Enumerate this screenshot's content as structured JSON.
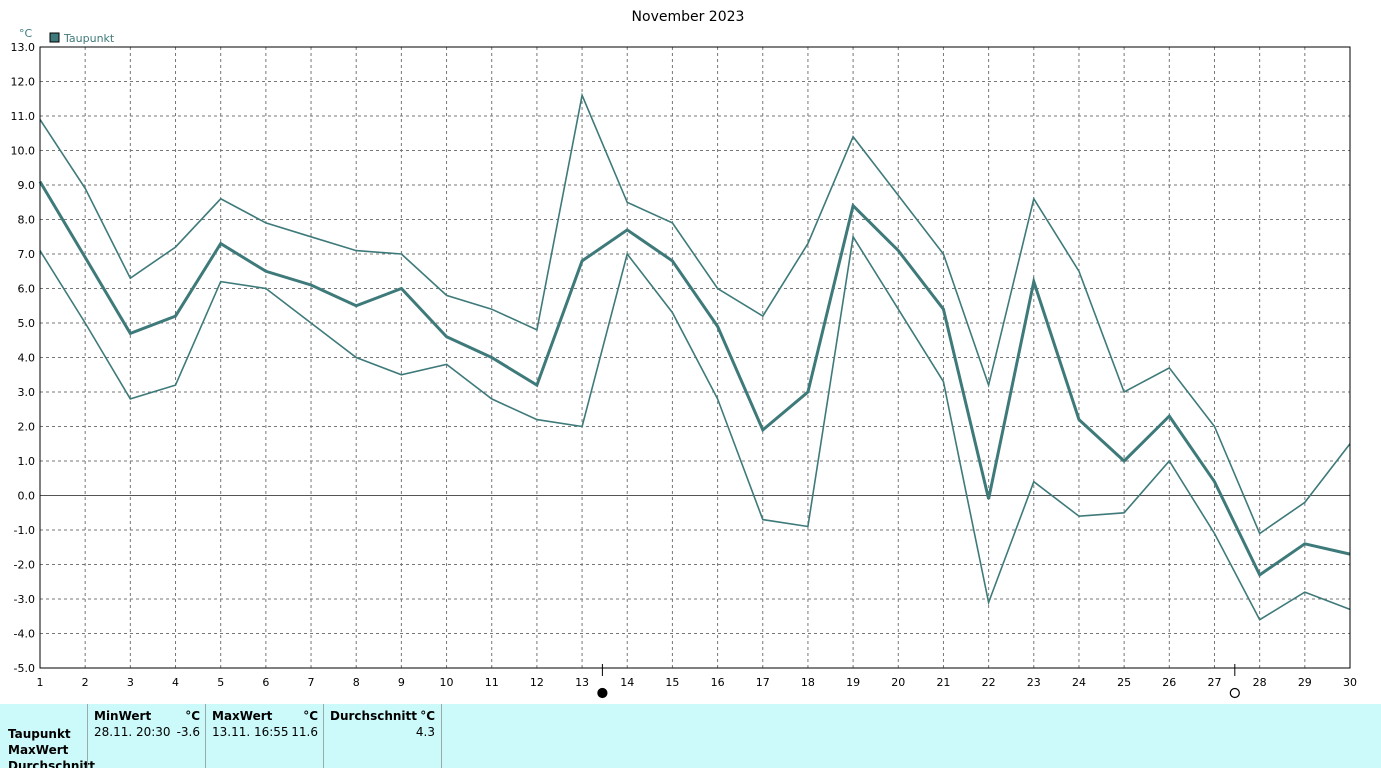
{
  "chart_data": {
    "type": "line",
    "title": "November 2023",
    "ylabel": "°C",
    "xlabel": "",
    "ylim": [
      -5,
      13
    ],
    "yticks": [
      13.0,
      12.0,
      11.0,
      10.0,
      9.0,
      8.0,
      7.0,
      6.0,
      5.0,
      4.0,
      3.0,
      2.0,
      1.0,
      0.0,
      -1.0,
      -2.0,
      -3.0,
      -4.0,
      -5.0
    ],
    "ytick_labels": [
      "13.0",
      "12.0",
      "11.0",
      "10.0",
      "9.0",
      "8.0",
      "7.0",
      "6.0",
      "5.0",
      "4.0",
      "3.0",
      "2.0",
      "1.0",
      "0.0",
      "-1.0",
      "-2.0",
      "-3.0",
      "-4.0",
      "-5.0"
    ],
    "x": [
      1,
      2,
      3,
      4,
      5,
      6,
      7,
      8,
      9,
      10,
      11,
      12,
      13,
      14,
      15,
      16,
      17,
      18,
      19,
      20,
      21,
      22,
      23,
      24,
      25,
      26,
      27,
      28,
      29,
      30
    ],
    "xlim": [
      1,
      30
    ],
    "grid": true,
    "legend": "top-left",
    "legend_label": "Taupunkt",
    "color": "#3f7a7a",
    "series": [
      {
        "role": "max",
        "values": [
          10.9,
          8.9,
          6.3,
          7.2,
          8.6,
          7.9,
          7.5,
          7.1,
          7.0,
          5.8,
          5.4,
          4.8,
          11.6,
          8.5,
          7.9,
          6.0,
          5.2,
          7.3,
          10.4,
          8.7,
          7.0,
          3.2,
          8.6,
          6.5,
          3.0,
          3.7,
          2.0,
          -1.1,
          -0.2,
          1.5
        ]
      },
      {
        "role": "mean",
        "values": [
          9.1,
          6.9,
          4.7,
          5.2,
          7.3,
          6.5,
          6.1,
          5.5,
          6.0,
          4.6,
          4.0,
          3.2,
          6.8,
          7.7,
          6.8,
          4.9,
          1.9,
          3.0,
          8.4,
          7.1,
          5.4,
          -0.1,
          6.2,
          2.2,
          1.0,
          2.3,
          0.4,
          -2.3,
          -1.4,
          -1.7
        ]
      },
      {
        "role": "min",
        "values": [
          7.1,
          5.0,
          2.8,
          3.2,
          6.2,
          6.0,
          5.0,
          4.0,
          3.5,
          3.8,
          2.8,
          2.2,
          2.0,
          7.0,
          5.3,
          2.8,
          -0.7,
          -0.9,
          7.5,
          5.4,
          3.3,
          -3.1,
          0.4,
          -0.6,
          -0.5,
          1.0,
          -1.1,
          -3.6,
          -2.8,
          -3.3
        ]
      }
    ],
    "moon_markers": [
      {
        "x": 13.45,
        "phase": "new-moon"
      },
      {
        "x": 27.45,
        "phase": "full-moon"
      }
    ]
  },
  "stats": {
    "row_labels": [
      "Taupunkt",
      "MaxWert",
      "Durchschnitt"
    ],
    "columns": [
      {
        "header": "MinWert",
        "unit": "°C",
        "when": "28.11.  20:30",
        "value": "-3.6"
      },
      {
        "header": "MaxWert",
        "unit": "°C",
        "when": "13.11.  16:55",
        "value": "11.6"
      },
      {
        "header": "Durchschnitt",
        "unit": "°C",
        "when": "",
        "value": "4.3"
      }
    ]
  }
}
